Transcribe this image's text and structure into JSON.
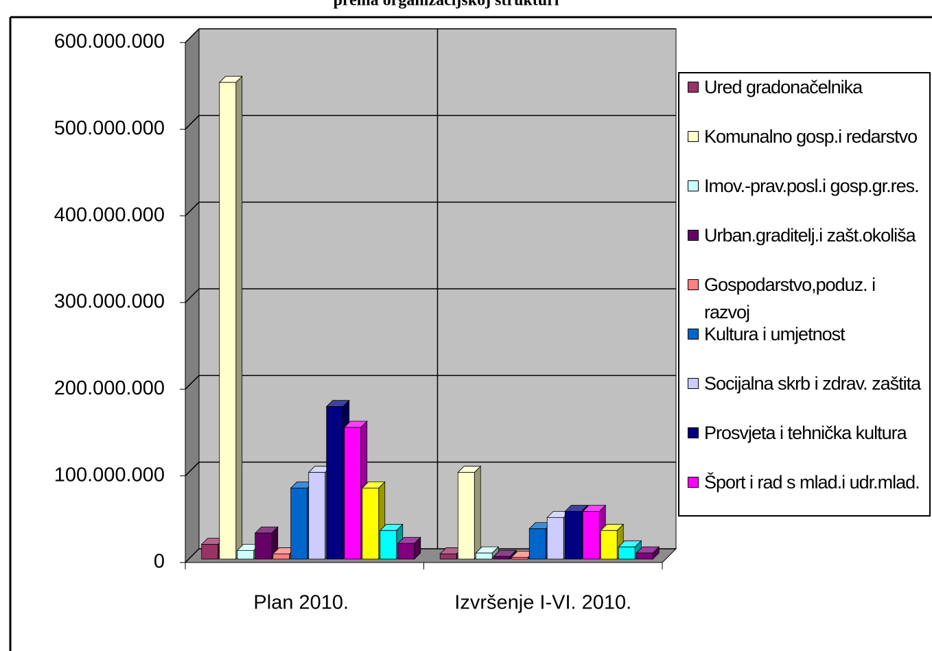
{
  "chart_data": {
    "type": "bar3d",
    "title": "prema organizacijskoj strukturi",
    "categories": [
      "Plan 2010.",
      "Izvršenje I-VI. 2010."
    ],
    "series": [
      {
        "name": "Ured gradonačelnika",
        "color": "#993366",
        "values": [
          17000000,
          6000000
        ]
      },
      {
        "name": "Komunalno gosp.i redarstvo",
        "color": "#ffffcc",
        "values": [
          550000000,
          100000000
        ]
      },
      {
        "name": "Imov.-prav.posl.i gosp.gr.res.",
        "color": "#ccffff",
        "values": [
          10000000,
          7000000
        ]
      },
      {
        "name": "Urban.graditelj.i zašt.okoliša",
        "color": "#660066",
        "values": [
          30000000,
          3000000
        ]
      },
      {
        "name": "Gospodarstvo,poduz. i razvoj",
        "color": "#ff8080",
        "values": [
          6000000,
          2000000
        ]
      },
      {
        "name": "Kultura i umjetnost",
        "color": "#0066cc",
        "values": [
          82000000,
          35000000
        ]
      },
      {
        "name": "Socijalna skrb i zdrav. zaštita",
        "color": "#ccccff",
        "values": [
          100000000,
          48000000
        ]
      },
      {
        "name": "Prosvjeta i tehnička kultura",
        "color": "#000080",
        "values": [
          176000000,
          55000000
        ]
      },
      {
        "name": "Šport i rad s mlad.i udr.mlad.",
        "color": "#ff00ff",
        "values": [
          152000000,
          55000000
        ]
      },
      {
        "color": "#ffff00",
        "values": [
          82000000,
          33000000
        ]
      },
      {
        "color": "#00ffff",
        "values": [
          33000000,
          14000000
        ]
      },
      {
        "color": "#800080",
        "values": [
          18000000,
          7000000
        ]
      }
    ],
    "ylim": [
      0,
      600000000
    ],
    "yticks": [
      0,
      {
        "value": 100000000,
        "label": "100.000.000"
      },
      {
        "value": 200000000,
        "label": "200.000.000"
      },
      {
        "value": 300000000,
        "label": "300.000.000"
      },
      {
        "value": 400000000,
        "label": "400.000.000"
      },
      {
        "value": 500000000,
        "label": "500.000.000"
      },
      {
        "value": 600000000,
        "label": "600.000.000"
      }
    ],
    "grid": true,
    "legend": "right"
  }
}
